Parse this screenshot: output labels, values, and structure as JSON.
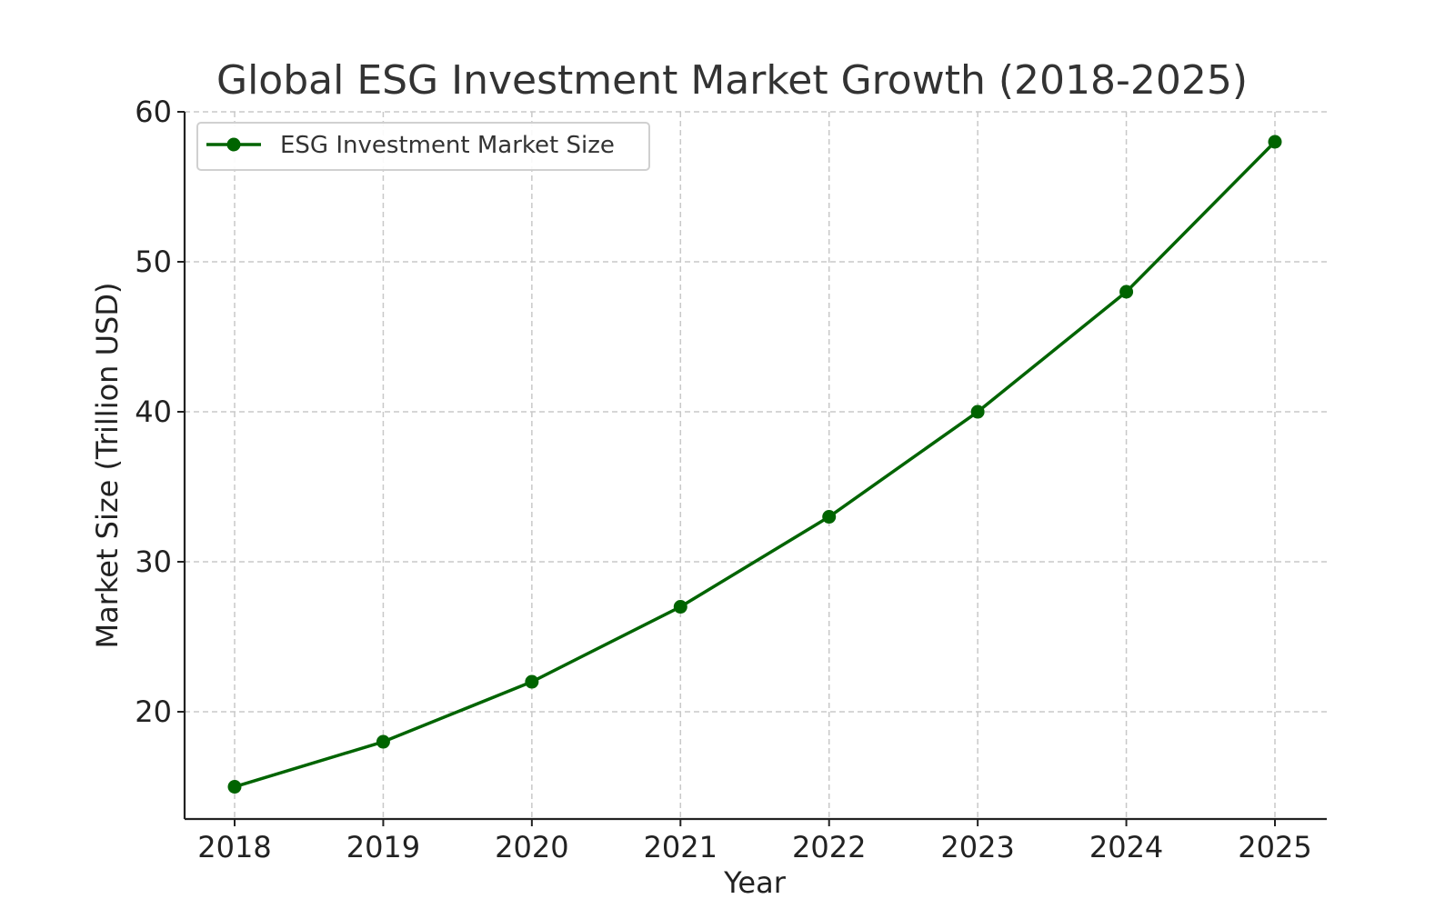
{
  "chart_data": {
    "type": "line",
    "title": "Global ESG Investment Market Growth (2018-2025)",
    "xlabel": "Year",
    "ylabel": "Market Size (Trillion USD)",
    "x": [
      2018,
      2019,
      2020,
      2021,
      2022,
      2023,
      2024,
      2025
    ],
    "x_tick_labels": [
      "2018",
      "2019",
      "2020",
      "2021",
      "2022",
      "2023",
      "2024",
      "2025"
    ],
    "y_ticks": [
      20,
      30,
      40,
      50,
      60
    ],
    "y_tick_labels": [
      "20",
      "30",
      "40",
      "50",
      "60"
    ],
    "ylim": [
      12.85,
      60
    ],
    "series": [
      {
        "name": "ESG Investment Market Size",
        "values": [
          15,
          18,
          22,
          27,
          33,
          40,
          48,
          58
        ],
        "color": "#006400",
        "marker": "circle"
      }
    ],
    "grid": true,
    "legend_position": "top-left"
  }
}
